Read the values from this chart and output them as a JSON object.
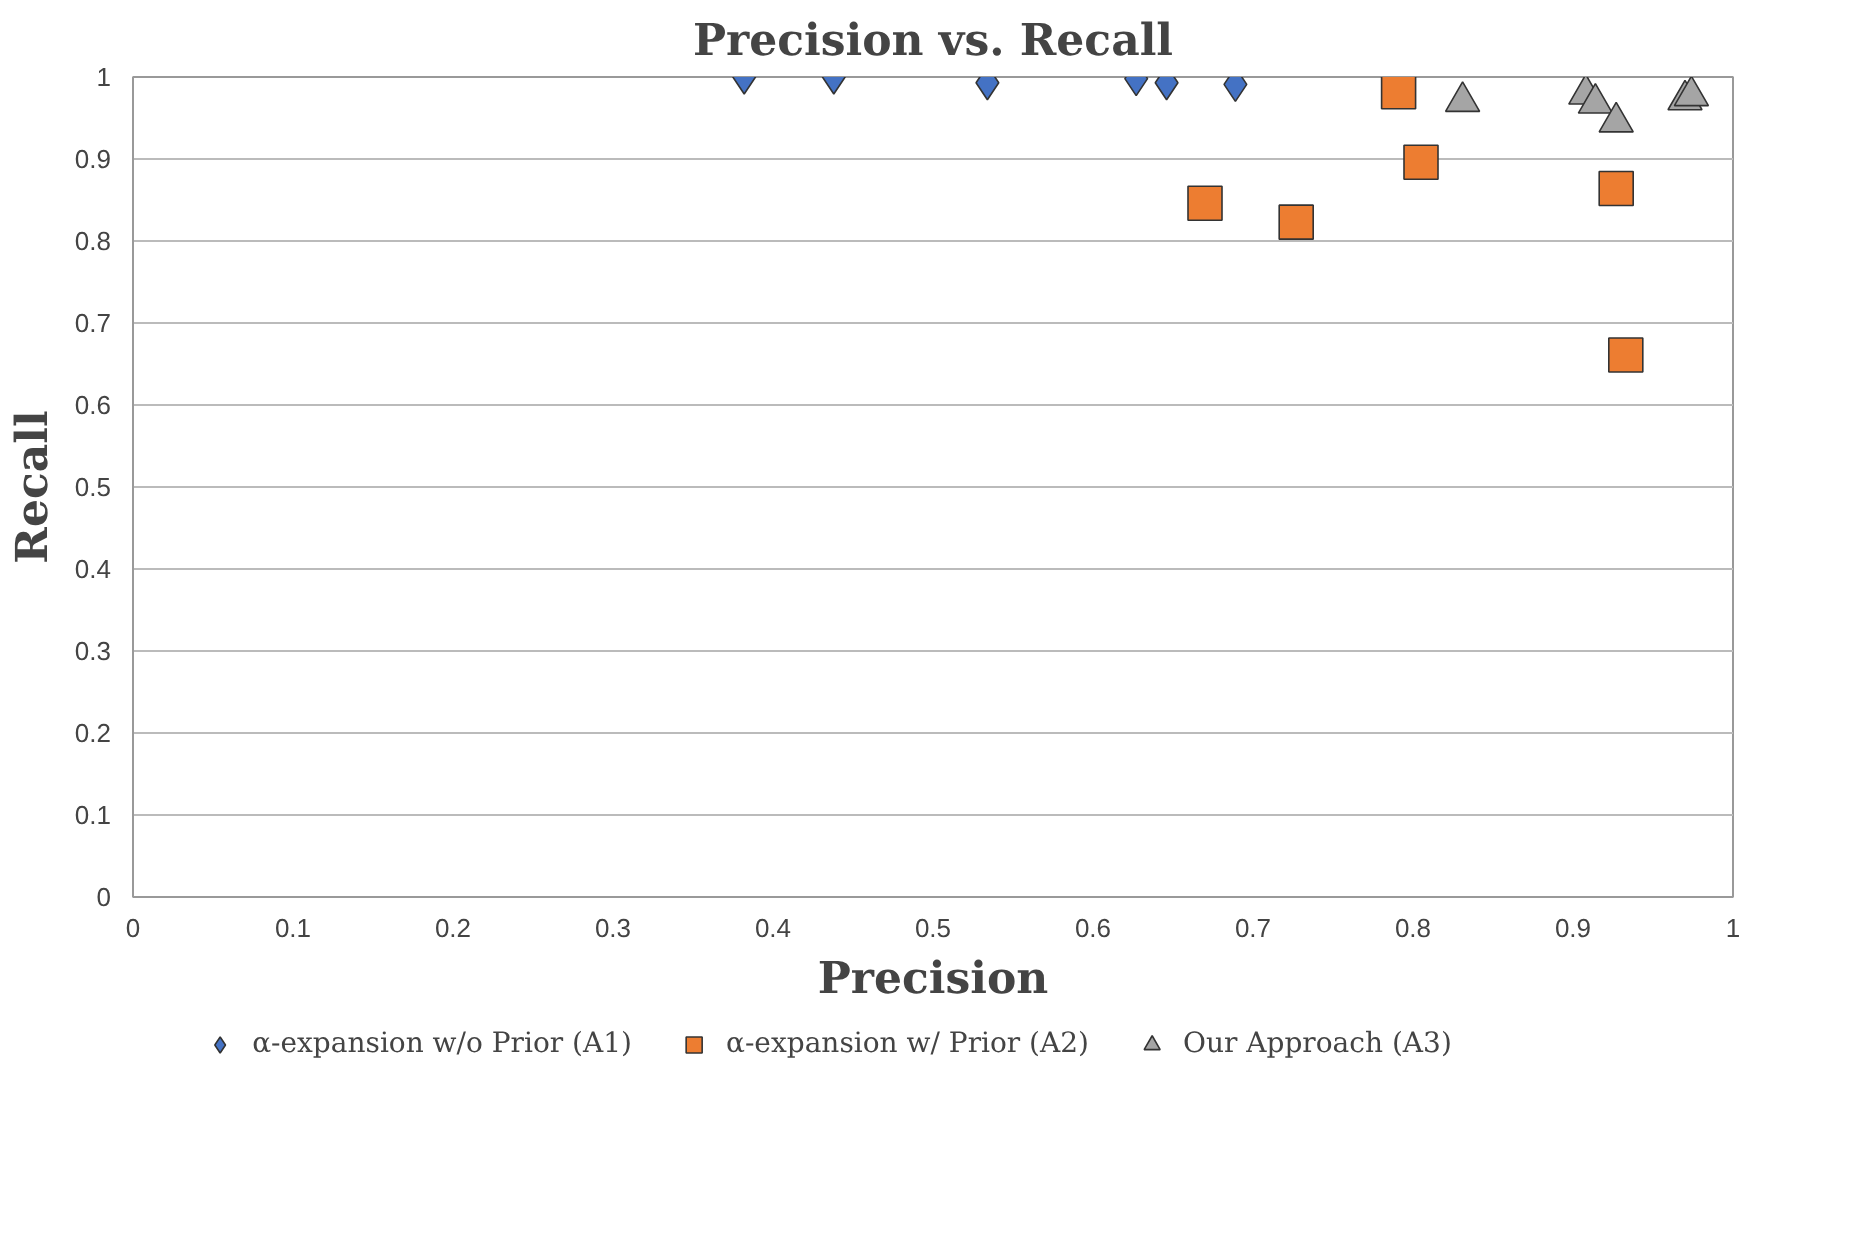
{
  "chart_data": {
    "type": "scatter",
    "title": "Precision vs. Recall",
    "xlabel": "Precision",
    "ylabel": "Recall",
    "xlim": [
      0,
      1
    ],
    "ylim": [
      0,
      1
    ],
    "xticks": [
      0,
      0.1,
      0.2,
      0.3,
      0.4,
      0.5,
      0.6,
      0.7,
      0.8,
      0.9,
      1
    ],
    "yticks": [
      0,
      0.1,
      0.2,
      0.3,
      0.4,
      0.5,
      0.6,
      0.7,
      0.8,
      0.9,
      1
    ],
    "grid": "y",
    "legend": "bottom",
    "series": [
      {
        "name": "α-expansion w/o Prior (A1)",
        "color": "#4472c4",
        "marker": "diamond",
        "x": [
          0.382,
          0.438,
          0.534,
          0.627,
          0.646,
          0.689
        ],
        "values": [
          1.0,
          1.0,
          0.993,
          0.998,
          0.993,
          0.991
        ]
      },
      {
        "name": "α-expansion w/ Prior (A2)",
        "color": "#ed7d31",
        "marker": "square",
        "x": [
          0.791,
          0.67,
          0.727,
          0.805,
          0.927,
          0.933
        ],
        "values": [
          0.982,
          0.846,
          0.823,
          0.896,
          0.864,
          0.661
        ]
      },
      {
        "name": "Our Approach (A3)",
        "color": "#a5a5a5",
        "marker": "triangle",
        "x": [
          0.831,
          0.908,
          0.914,
          0.927,
          0.97,
          0.974
        ],
        "values": [
          0.97,
          0.979,
          0.968,
          0.945,
          0.972,
          0.977
        ]
      }
    ]
  }
}
